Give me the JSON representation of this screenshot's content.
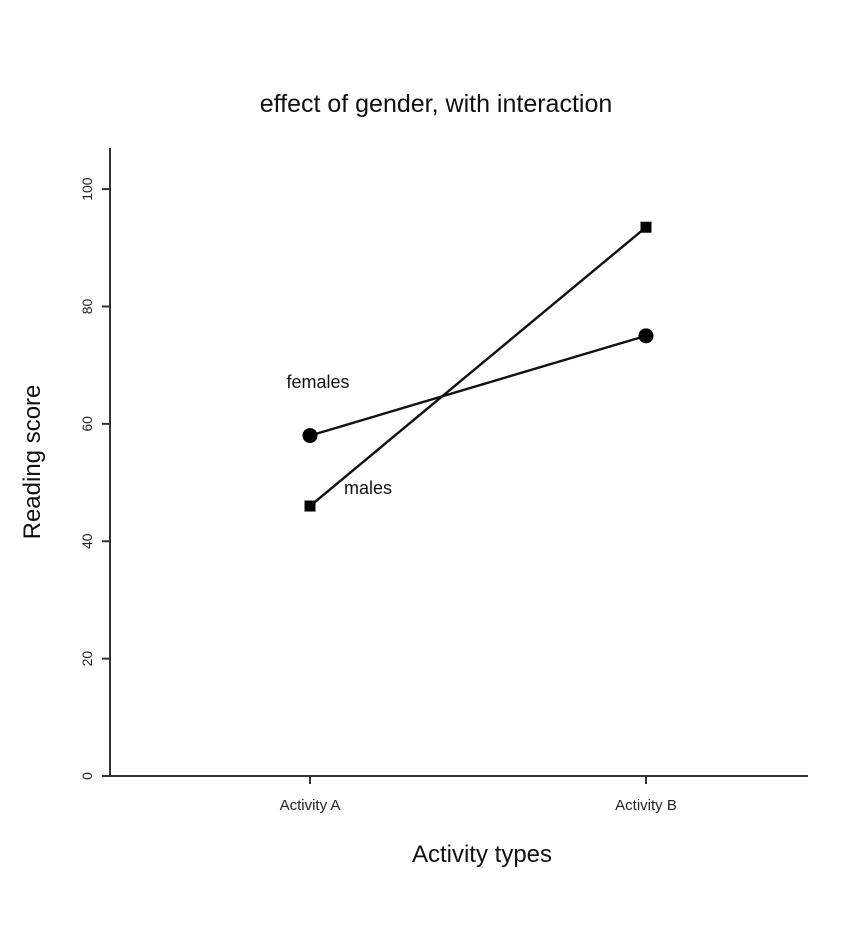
{
  "chart_data": {
    "type": "line",
    "title": "effect of gender, with interaction",
    "xlabel": "Activity types",
    "ylabel": "Reading score",
    "categories": [
      "Activity A",
      "Activity B"
    ],
    "ylim": [
      0,
      107
    ],
    "yticks": [
      0,
      20,
      40,
      60,
      80,
      100
    ],
    "grid": false,
    "series": [
      {
        "name": "females",
        "marker": "circle",
        "values": [
          58,
          75
        ]
      },
      {
        "name": "males",
        "marker": "square",
        "values": [
          46,
          93.5
        ]
      }
    ]
  }
}
